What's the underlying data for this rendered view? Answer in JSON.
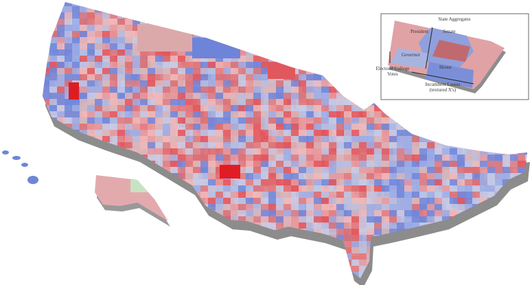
{
  "legend": {
    "title": "State Aggregates",
    "president": "President",
    "senate": "Senate",
    "governor": "Governor",
    "house": "House",
    "electoral": "Electoral College Votes",
    "losses": "Incumbent Losses (textured X's)"
  }
}
